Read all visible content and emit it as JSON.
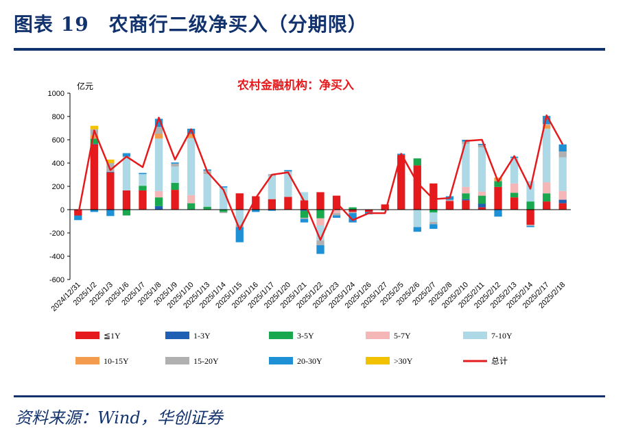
{
  "figure_title": "图表 19　农商行二级净买入（分期限）",
  "source": "资料来源：Wind，华创证券",
  "chart_data": {
    "type": "bar",
    "stacked": true,
    "title": "农村金融机构：净买入",
    "unit_label": "亿元",
    "ylim": [
      -600,
      1000
    ],
    "yticks": [
      -600,
      -400,
      -200,
      0,
      200,
      400,
      600,
      800,
      1000
    ],
    "categories": [
      "2024/12/31",
      "2025/1/2",
      "2025/1/3",
      "2025/1/6",
      "2025/1/7",
      "2025/1/8",
      "2025/1/9",
      "2025/1/10",
      "2025/1/13",
      "2025/1/14",
      "2025/1/15",
      "2025/1/16",
      "2025/1/17",
      "2025/1/20",
      "2025/1/21",
      "2025/1/22",
      "2025/1/23",
      "2025/1/24",
      "2025/1/26",
      "2025/1/27",
      "2025/2/5",
      "2025/2/6",
      "2025/2/7",
      "2025/2/8",
      "2025/2/10",
      "2025/2/11",
      "2025/2/12",
      "2025/2/13",
      "2025/2/14",
      "2025/2/17",
      "2025/2/18"
    ],
    "series": [
      {
        "name": "≦1Y",
        "color": "#e41a1c",
        "values": [
          -50,
          560,
          320,
          165,
          165,
          0,
          170,
          0,
          0,
          0,
          140,
          115,
          90,
          110,
          80,
          150,
          120,
          -20,
          -20,
          45,
          470,
          380,
          225,
          75,
          80,
          20,
          195,
          105,
          -130,
          70,
          55
        ]
      },
      {
        "name": "1-3Y",
        "color": "#1f5fb4",
        "values": [
          0,
          5,
          5,
          0,
          0,
          30,
          0,
          0,
          0,
          0,
          0,
          0,
          0,
          0,
          -10,
          0,
          0,
          0,
          0,
          0,
          0,
          0,
          0,
          0,
          10,
          30,
          0,
          0,
          0,
          0,
          30
        ]
      },
      {
        "name": "3-5Y",
        "color": "#1aa84f",
        "values": [
          0,
          45,
          0,
          -50,
          40,
          75,
          60,
          55,
          25,
          -20,
          0,
          0,
          0,
          0,
          -60,
          -75,
          0,
          20,
          0,
          0,
          0,
          60,
          -25,
          0,
          50,
          70,
          50,
          40,
          70,
          70,
          0
        ]
      },
      {
        "name": "5-7Y",
        "color": "#f4b6b6",
        "values": [
          0,
          0,
          0,
          0,
          0,
          55,
          0,
          70,
          0,
          0,
          0,
          0,
          0,
          0,
          0,
          -60,
          -30,
          0,
          0,
          0,
          0,
          0,
          0,
          0,
          55,
          35,
          0,
          80,
          0,
          95,
          75
        ]
      },
      {
        "name": "7-10Y",
        "color": "#add8e6",
        "values": [
          0,
          0,
          0,
          290,
          100,
          450,
          140,
          490,
          280,
          190,
          -130,
          0,
          200,
          210,
          70,
          -130,
          0,
          0,
          0,
          0,
          0,
          -150,
          -80,
          0,
          370,
          380,
          0,
          220,
          175,
          460,
          290
        ]
      },
      {
        "name": "10-15Y",
        "color": "#f39c4d",
        "values": [
          0,
          30,
          0,
          0,
          0,
          40,
          0,
          35,
          0,
          0,
          0,
          0,
          0,
          0,
          0,
          0,
          0,
          0,
          0,
          0,
          0,
          0,
          0,
          0,
          0,
          0,
          30,
          0,
          0,
          30,
          0
        ]
      },
      {
        "name": "15-20Y",
        "color": "#b0b0b0",
        "values": [
          0,
          50,
          75,
          0,
          0,
          60,
          25,
          0,
          30,
          -10,
          -20,
          0,
          15,
          10,
          -10,
          -40,
          -20,
          -10,
          0,
          -10,
          0,
          0,
          -20,
          10,
          20,
          20,
          0,
          0,
          -10,
          10,
          50
        ]
      },
      {
        "name": "20-30Y",
        "color": "#1e90d6",
        "values": [
          -40,
          -20,
          -55,
          30,
          10,
          70,
          10,
          45,
          10,
          10,
          -130,
          -20,
          -10,
          10,
          -30,
          -75,
          -20,
          -80,
          -20,
          0,
          10,
          -40,
          -40,
          30,
          15,
          10,
          -60,
          10,
          -10,
          70,
          60
        ]
      },
      {
        "name": ">30Y",
        "color": "#f2c200",
        "values": [
          0,
          30,
          30,
          0,
          0,
          0,
          0,
          0,
          0,
          0,
          0,
          0,
          0,
          0,
          0,
          0,
          0,
          0,
          0,
          0,
          0,
          0,
          0,
          0,
          0,
          0,
          0,
          0,
          0,
          0,
          0
        ]
      }
    ],
    "line": {
      "name": "总计",
      "color": "#e41a1c",
      "values": [
        -50,
        680,
        340,
        455,
        365,
        790,
        430,
        690,
        325,
        170,
        -170,
        100,
        300,
        320,
        70,
        -260,
        60,
        -90,
        -30,
        -30,
        480,
        230,
        90,
        100,
        590,
        600,
        240,
        460,
        180,
        810,
        560
      ]
    }
  }
}
